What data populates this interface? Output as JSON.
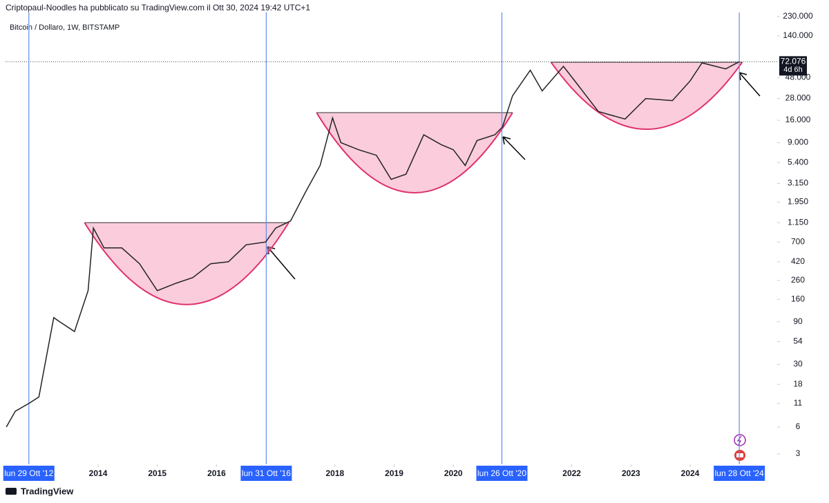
{
  "header": {
    "title": "Criptopaul-Noodles ha pubblicato su TradingView.com il Ott 30, 2024 19:42 UTC+1",
    "brand": "TradingView"
  },
  "chart_data": {
    "type": "line",
    "subtitle": "Bitcoin / Dollaro, 1W, BITSTAMP",
    "log_scale": true,
    "color": "#222222",
    "x": [
      2012.45,
      2012.6,
      2012.83,
      2013.0,
      2013.25,
      2013.35,
      2013.6,
      2013.83,
      2013.92,
      2014.1,
      2014.4,
      2014.7,
      2015.0,
      2015.3,
      2015.6,
      2015.9,
      2016.2,
      2016.5,
      2016.83,
      2017.0,
      2017.25,
      2017.5,
      2017.75,
      2017.96,
      2018.1,
      2018.4,
      2018.7,
      2018.95,
      2019.2,
      2019.5,
      2019.8,
      2020.0,
      2020.2,
      2020.4,
      2020.7,
      2020.83,
      2021.0,
      2021.3,
      2021.5,
      2021.86,
      2022.1,
      2022.45,
      2022.9,
      2023.25,
      2023.7,
      2024.0,
      2024.2,
      2024.6,
      2024.83
    ],
    "values": [
      6,
      9,
      11,
      13,
      100,
      90,
      70,
      200,
      1000,
      600,
      600,
      400,
      200,
      240,
      280,
      400,
      420,
      650,
      700,
      1000,
      1200,
      2500,
      5000,
      17000,
      9000,
      7500,
      6500,
      3500,
      4000,
      11000,
      8500,
      7500,
      5000,
      9500,
      11000,
      13500,
      30000,
      58000,
      34000,
      64000,
      40000,
      20000,
      16500,
      28000,
      26500,
      44000,
      70000,
      60000,
      72076
    ],
    "xlim": [
      2012.436,
      2025.47
    ],
    "ylim": [
      2.3,
      256000
    ],
    "xticks": [
      2014,
      2015,
      2016,
      2018,
      2019,
      2020,
      2022,
      2023,
      2024
    ],
    "yticks": [
      {
        "value": 230000,
        "label": "230.000"
      },
      {
        "value": 140000,
        "label": "140.000"
      },
      {
        "value": 48000,
        "label": "48.000"
      },
      {
        "value": 28000,
        "label": "28.000"
      },
      {
        "value": 16000,
        "label": "16.000"
      },
      {
        "value": 9000,
        "label": "9.000"
      },
      {
        "value": 5400,
        "label": "5.400"
      },
      {
        "value": 3150,
        "label": "3.150"
      },
      {
        "value": 1950,
        "label": "1.950"
      },
      {
        "value": 1150,
        "label": "1.150"
      },
      700,
      420,
      260,
      160,
      90,
      54,
      30,
      18,
      11,
      6,
      3
    ],
    "vlines": [
      {
        "x": 2012.83,
        "label": "lun 29 Ott '12"
      },
      {
        "x": 2016.84,
        "label": "lun 31 Ott '16"
      },
      {
        "x": 2020.82,
        "label": "lun 26 Ott '20"
      },
      {
        "x": 2024.83,
        "label": "lun 28 Ott '24"
      }
    ],
    "cups": [
      {
        "x0": 2013.77,
        "x1": 2017.22,
        "top": 1150,
        "bottom": 140
      },
      {
        "x0": 2017.69,
        "x1": 2021.0,
        "top": 19450,
        "bottom": 2480
      },
      {
        "x0": 2021.65,
        "x1": 2024.88,
        "top": 71100,
        "bottom": 12700
      }
    ],
    "last_price": {
      "value": 72076,
      "label": "72.076"
    },
    "countdown": "4d 6h"
  }
}
